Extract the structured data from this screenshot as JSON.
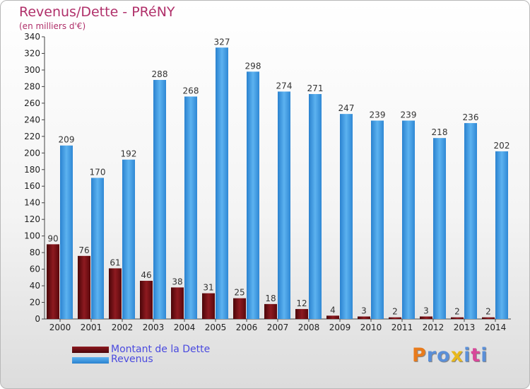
{
  "chart_data": {
    "type": "bar",
    "title": "Revenus/Dette - PRéNY",
    "subtitle": "(en milliers d'€)",
    "categories": [
      "2000",
      "2001",
      "2002",
      "2003",
      "2004",
      "2005",
      "2006",
      "2007",
      "2008",
      "2009",
      "2010",
      "2011",
      "2012",
      "2013",
      "2014"
    ],
    "series": [
      {
        "name": "Montant de la Dette",
        "color": "#7a0e14",
        "values": [
          90,
          76,
          61,
          46,
          38,
          31,
          25,
          18,
          12,
          4,
          3,
          2,
          3,
          2,
          2
        ]
      },
      {
        "name": "Revenus",
        "color": "#3f9ae0",
        "values": [
          209,
          170,
          192,
          288,
          268,
          327,
          298,
          274,
          271,
          247,
          239,
          239,
          218,
          236,
          202
        ]
      }
    ],
    "ylim": [
      0,
      340
    ],
    "yticks": [
      0,
      20,
      40,
      60,
      80,
      100,
      120,
      140,
      160,
      180,
      200,
      220,
      240,
      260,
      280,
      300,
      320,
      340
    ],
    "grid": false,
    "legend_position": "bottom-left"
  },
  "branding": {
    "letters": [
      "P",
      "r",
      "o",
      "x",
      "i",
      "t",
      "i"
    ],
    "colors": [
      "#e87b1c",
      "#5a8fd8",
      "#5a8fd8",
      "#e8b81c",
      "#5a8fd8",
      "#d8489a",
      "#5a8fd8"
    ]
  }
}
